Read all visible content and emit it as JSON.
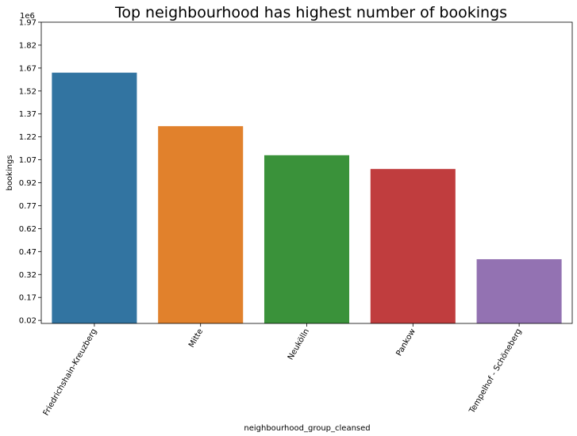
{
  "chart_data": {
    "type": "bar",
    "title": "Top neighbourhood has highest number of bookings",
    "xlabel": "neighbourhood_group_cleansed",
    "ylabel": "bookings",
    "scale_label": "1e6",
    "categories": [
      "Friedrichshain-Kreuzberg",
      "Mitte",
      "Neukölln",
      "Pankow",
      "Tempelhof - Schöneberg"
    ],
    "values": [
      1.64,
      1.29,
      1.1,
      1.01,
      0.42
    ],
    "colors": [
      "#3274a1",
      "#e1812c",
      "#3a923a",
      "#c03d3e",
      "#9372b2"
    ],
    "ylim": [
      0.0,
      1.97
    ],
    "yticks": [
      "0.02",
      "0.17",
      "0.32",
      "0.47",
      "0.62",
      "0.77",
      "0.92",
      "1.07",
      "1.22",
      "1.37",
      "1.52",
      "1.67",
      "1.82",
      "1.97"
    ],
    "grid": false,
    "legend": "none"
  }
}
